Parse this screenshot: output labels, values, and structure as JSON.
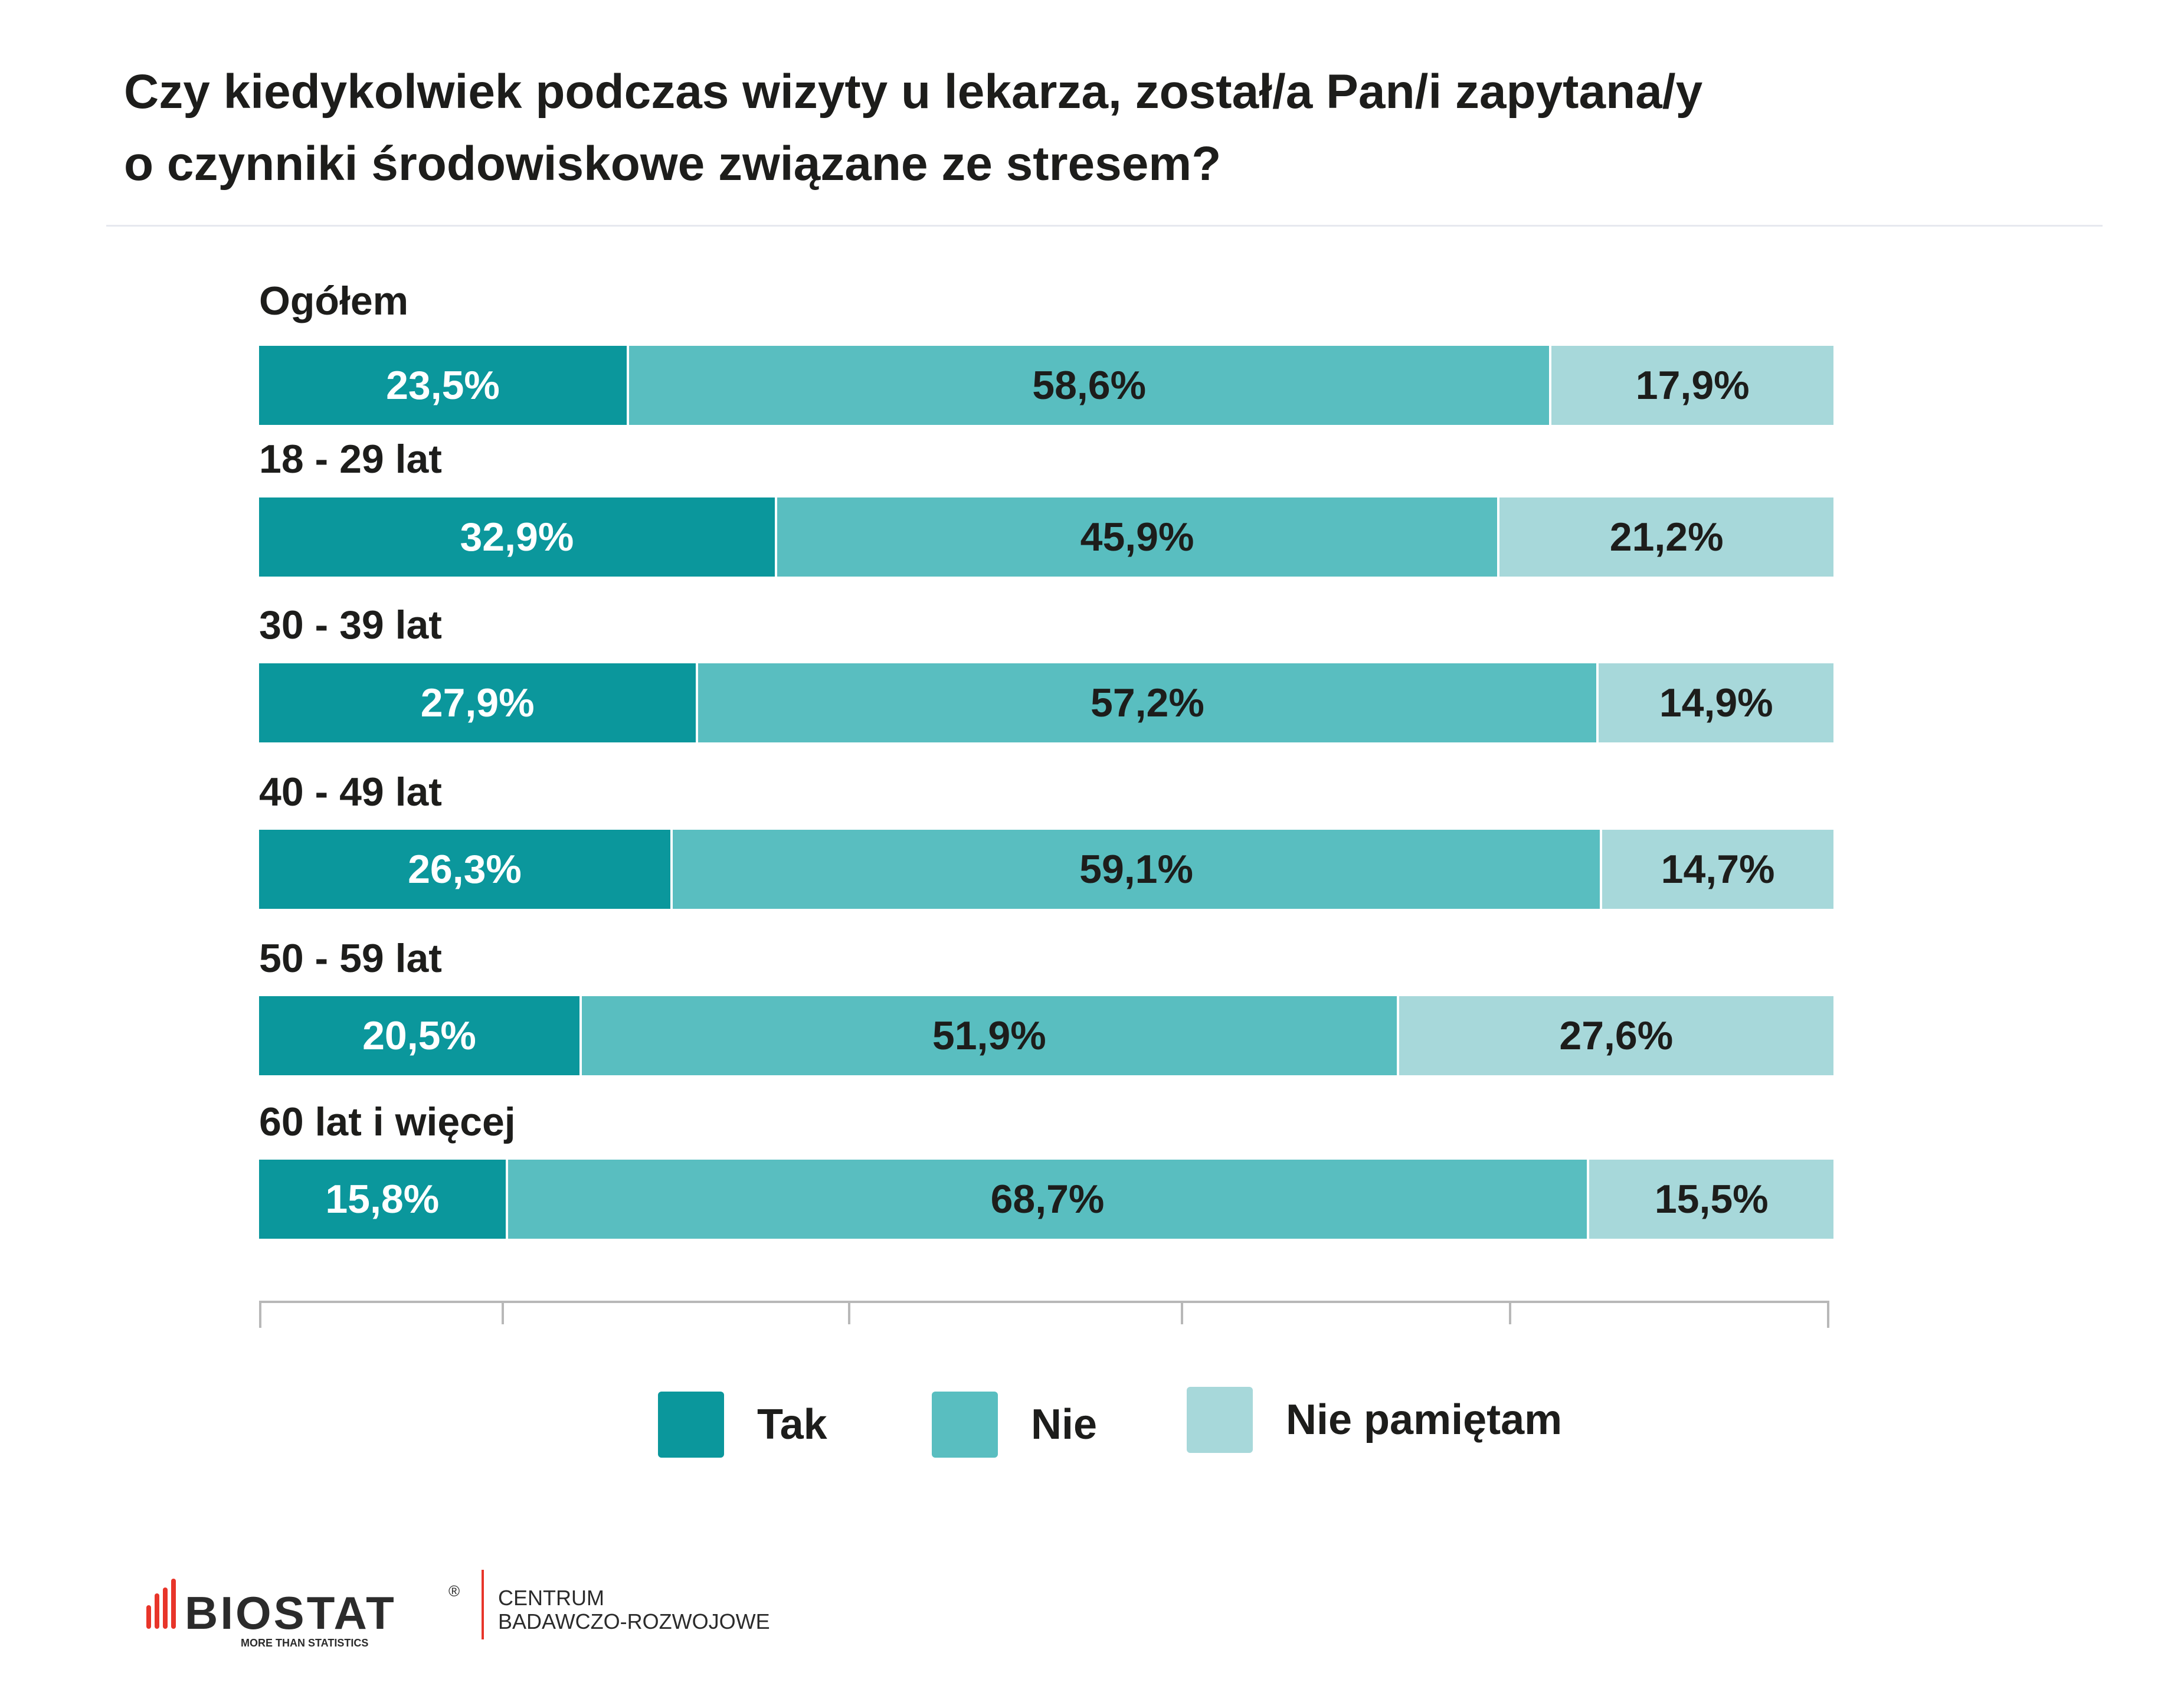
{
  "chart_data": {
    "type": "bar",
    "orientation": "horizontal-stacked-100",
    "title": "Czy kiedykolwiek podczas wizyty u lekarza, został/a Pan/i zapytana/y o czynniki środowiskowe związane ze stresem?",
    "title_lines": [
      "Czy kiedykolwiek podczas wizyty u lekarza, został/a Pan/i zapytana/y",
      "o czynniki środowiskowe związane ze stresem?"
    ],
    "categories": [
      "Ogółem",
      "18 - 29 lat",
      "30 - 39 lat",
      "40 - 49 lat",
      "50 - 59 lat",
      "60 lat i więcej"
    ],
    "series": [
      {
        "name": "Tak",
        "color": "#0b979c",
        "text_color": "#ffffff",
        "values": [
          23.5,
          32.9,
          27.9,
          26.3,
          20.5,
          15.8
        ],
        "labels": [
          "23,5%",
          "32,9%",
          "27,9%",
          "26,3%",
          "20,5%",
          "15,8%"
        ]
      },
      {
        "name": "Nie",
        "color": "#59bec0",
        "text_color": "#1d1d1b",
        "values": [
          58.6,
          45.9,
          57.2,
          59.1,
          51.9,
          68.7
        ],
        "labels": [
          "58,6%",
          "45,9%",
          "57,2%",
          "59,1%",
          "51,9%",
          "68,7%"
        ]
      },
      {
        "name": "Nie pamiętam",
        "color": "#a7d8da",
        "text_color": "#1d1d1b",
        "values": [
          17.9,
          21.2,
          14.9,
          14.7,
          27.6,
          15.5
        ],
        "labels": [
          "17,9%",
          "21,2%",
          "14,9%",
          "14,7%",
          "27,6%",
          "15,5%"
        ]
      }
    ],
    "xlim": [
      0,
      100
    ],
    "legend": "bottom-center",
    "grid": false
  },
  "logo": {
    "brand": "BIOSTAT",
    "tagline": "MORE THAN STATISTICS",
    "line1": "CENTRUM",
    "line2": "BADAWCZO-ROZWOJOWE"
  }
}
